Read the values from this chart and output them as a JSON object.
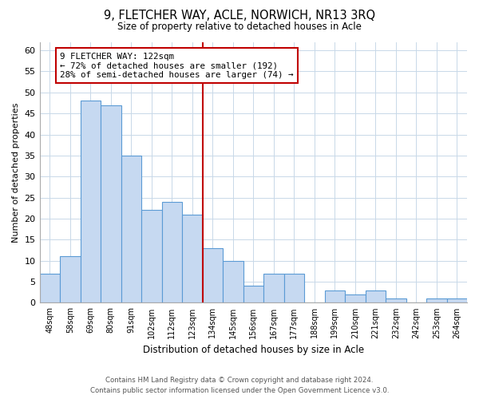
{
  "title": "9, FLETCHER WAY, ACLE, NORWICH, NR13 3RQ",
  "subtitle": "Size of property relative to detached houses in Acle",
  "xlabel": "Distribution of detached houses by size in Acle",
  "ylabel": "Number of detached properties",
  "bar_labels": [
    "48sqm",
    "58sqm",
    "69sqm",
    "80sqm",
    "91sqm",
    "102sqm",
    "112sqm",
    "123sqm",
    "134sqm",
    "145sqm",
    "156sqm",
    "167sqm",
    "177sqm",
    "188sqm",
    "199sqm",
    "210sqm",
    "221sqm",
    "232sqm",
    "242sqm",
    "253sqm",
    "264sqm"
  ],
  "bar_values": [
    7,
    11,
    48,
    47,
    35,
    22,
    24,
    21,
    13,
    10,
    4,
    7,
    7,
    0,
    3,
    2,
    3,
    1,
    0,
    1,
    1
  ],
  "bar_color": "#c6d9f1",
  "bar_edge_color": "#5b9bd5",
  "ylim": [
    0,
    62
  ],
  "yticks": [
    0,
    5,
    10,
    15,
    20,
    25,
    30,
    35,
    40,
    45,
    50,
    55,
    60
  ],
  "vline_after_index": 7,
  "vline_color": "#c00000",
  "annotation_text": "9 FLETCHER WAY: 122sqm\n← 72% of detached houses are smaller (192)\n28% of semi-detached houses are larger (74) →",
  "annotation_box_color": "#ffffff",
  "annotation_box_edge": "#c00000",
  "footer_line1": "Contains HM Land Registry data © Crown copyright and database right 2024.",
  "footer_line2": "Contains public sector information licensed under the Open Government Licence v3.0.",
  "background_color": "#ffffff",
  "grid_color": "#c8d8e8"
}
